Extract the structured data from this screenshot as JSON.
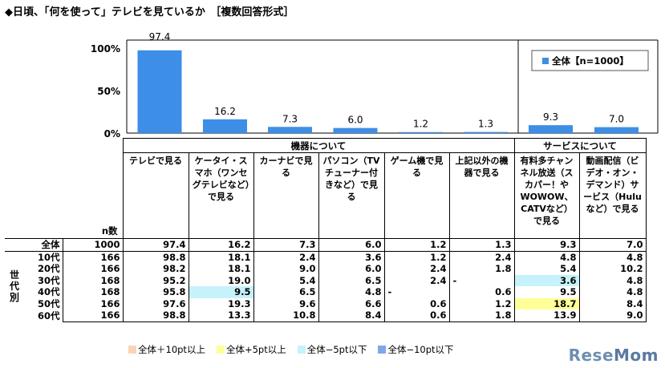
{
  "title": "◆日頃、「何を使って」テレビを見ているか　［複数回答形式］",
  "chart_data": {
    "type": "bar",
    "categories": [
      "テレビで見る",
      "ケータイ・スマホ（ワンセグテレビなど）で見る",
      "カーナビで見る",
      "パソコン（TVチューナー付きなど）で見る",
      "ゲーム機で見る",
      "上記以外の機器で見る",
      "有料多チャンネル放送（スカパー！やWOWOW、CATVなど）で見る",
      "動画配信（ビデオ・オン・デマンド）サービス（Huluなど）で見る"
    ],
    "series": [
      {
        "name": "全体【n=1000】",
        "values": [
          97.4,
          16.2,
          7.3,
          6.0,
          1.2,
          1.3,
          9.3,
          7.0
        ]
      }
    ],
    "value_labels": [
      "97.4",
      "16.2",
      "7.3",
      "6.0",
      "1.2",
      "1.3",
      "9.3",
      "7.0"
    ],
    "y_ticks": [
      "100%",
      "50%",
      "0%"
    ],
    "ylim": [
      0,
      100
    ],
    "legend": "top-right",
    "bar_color": "#3d8ee6"
  },
  "table": {
    "groups": [
      {
        "label": "機器について",
        "span": 6
      },
      {
        "label": "サービスについて",
        "span": 2
      }
    ],
    "headers": [
      "テレビで見る",
      "ケータイ・スマホ（ワンセグテレビなど）で見る",
      "カーナビで見る",
      "パソコン（TVチューナー付きなど）で見る",
      "ゲーム機で見る",
      "上記以外の機器で見る",
      "有料多チャンネル放送（スカパー！やWOWOW、CATVなど）で見る",
      "動画配信（ビデオ・オン・デマンド）サービス（Huluなど）で見る"
    ],
    "n_label": "n数",
    "generation_label": "世代別",
    "rows": [
      {
        "label": "全体",
        "n": "1000",
        "values": [
          "97.4",
          "16.2",
          "7.3",
          "6.0",
          "1.2",
          "1.3",
          "9.3",
          "7.0"
        ]
      },
      {
        "label": "10代",
        "n": "166",
        "values": [
          "98.8",
          "18.1",
          "2.4",
          "3.6",
          "1.2",
          "2.4",
          "4.8",
          "4.8"
        ]
      },
      {
        "label": "20代",
        "n": "166",
        "values": [
          "98.2",
          "18.1",
          "9.0",
          "6.0",
          "2.4",
          "1.8",
          "5.4",
          "10.2"
        ]
      },
      {
        "label": "30代",
        "n": "168",
        "values": [
          "95.2",
          "19.0",
          "5.4",
          "6.5",
          "2.4",
          "-",
          "3.6",
          "4.8"
        ]
      },
      {
        "label": "40代",
        "n": "168",
        "values": [
          "95.8",
          "9.5",
          "6.5",
          "4.8",
          "-",
          "0.6",
          "9.5",
          "4.8"
        ]
      },
      {
        "label": "50代",
        "n": "166",
        "values": [
          "97.6",
          "19.3",
          "9.6",
          "6.6",
          "0.6",
          "1.2",
          "18.7",
          "8.4"
        ]
      },
      {
        "label": "60代",
        "n": "166",
        "values": [
          "98.8",
          "13.3",
          "10.8",
          "8.4",
          "0.6",
          "1.8",
          "13.9",
          "9.0"
        ]
      }
    ],
    "highlights": [
      {
        "row": 3,
        "col": 6,
        "kind": "minus5"
      },
      {
        "row": 4,
        "col": 1,
        "kind": "minus5"
      },
      {
        "row": 5,
        "col": 6,
        "kind": "plus5"
      }
    ]
  },
  "legend_bottom": [
    {
      "label": "全体＋10pt以上",
      "color": "#fbd3b4"
    },
    {
      "label": "全体+5pt以上",
      "color": "#ffff99"
    },
    {
      "label": "全体−5pt以下",
      "color": "#c6f2fb"
    },
    {
      "label": "全体−10pt以下",
      "color": "#7fa7e8"
    }
  ],
  "watermark": {
    "text_a": "Rese",
    "text_b": "Mom"
  }
}
